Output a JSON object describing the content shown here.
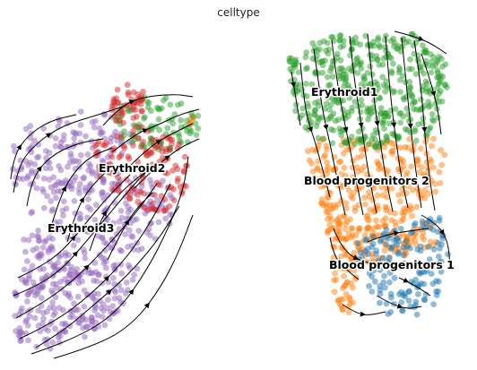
{
  "title": "celltype",
  "chart_data": {
    "type": "scatter",
    "title": "celltype",
    "xlabel": "",
    "ylabel": "",
    "axes_visible": false,
    "grid": false,
    "legend": "on data",
    "overlay": "velocity streamlines with arrowheads",
    "series": [
      {
        "name": "Erythroid1",
        "color": "#2ca02c"
      },
      {
        "name": "Erythroid2",
        "color": "#d62728"
      },
      {
        "name": "Erythroid3",
        "color": "#9467bd"
      },
      {
        "name": "Blood progenitors 2",
        "color": "#ff7f0e"
      },
      {
        "name": "Blood progenitors 1",
        "color": "#1f77b4"
      }
    ]
  }
}
